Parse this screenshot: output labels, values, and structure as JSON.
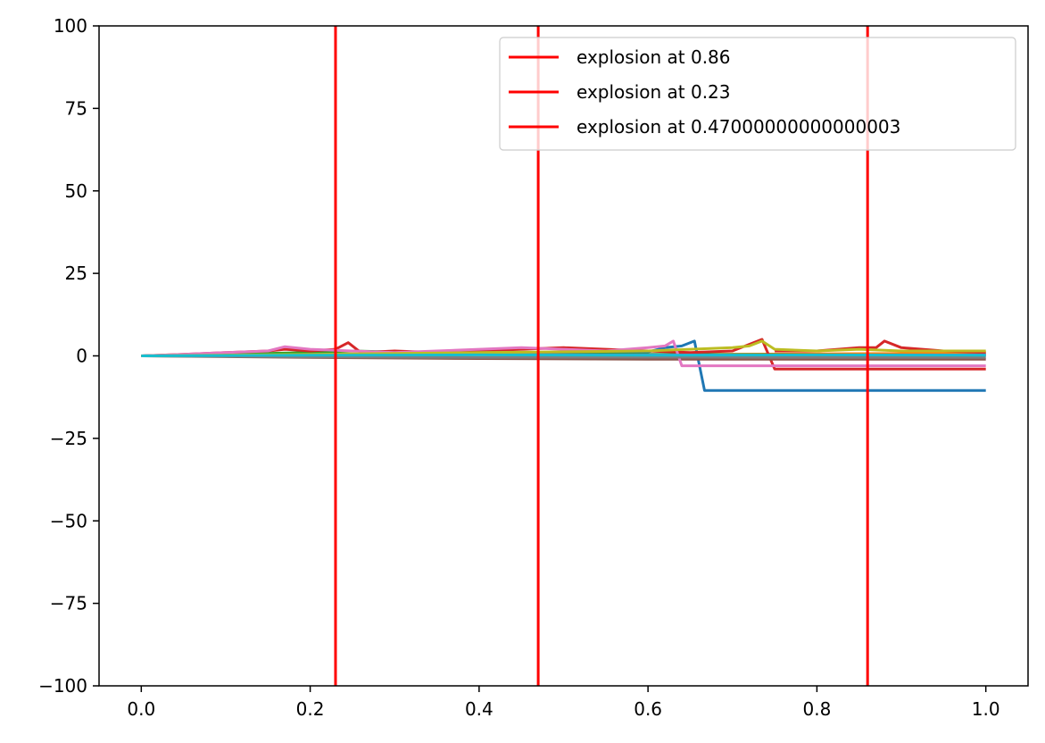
{
  "chart_data": {
    "type": "line",
    "title": "",
    "xlabel": "",
    "ylabel": "",
    "xlim": [
      -0.05,
      1.05
    ],
    "ylim": [
      -100,
      100
    ],
    "xticks": [
      0.0,
      0.2,
      0.4,
      0.6,
      0.8,
      1.0
    ],
    "xtick_labels": [
      "0.0",
      "0.2",
      "0.4",
      "0.6",
      "0.8",
      "1.0"
    ],
    "yticks": [
      -100,
      -75,
      -50,
      -25,
      0,
      25,
      50,
      75,
      100
    ],
    "ytick_labels": [
      "−100",
      "−75",
      "−50",
      "−25",
      "0",
      "25",
      "50",
      "75",
      "100"
    ],
    "grid": false,
    "legend_position": "top-right",
    "vlines": [
      {
        "label": "explosion at 0.86",
        "x": 0.86,
        "color": "#ff0000"
      },
      {
        "label": "explosion at 0.23",
        "x": 0.23,
        "color": "#ff0000"
      },
      {
        "label": "explosion at 0.47000000000000003",
        "x": 0.47000000000000003,
        "color": "#ff0000"
      }
    ],
    "series": [
      {
        "color": "#1f77b4",
        "x": [
          0,
          0.1,
          0.2,
          0.3,
          0.4,
          0.5,
          0.6,
          0.62,
          0.64,
          0.655,
          0.667,
          0.7,
          0.8,
          0.9,
          1.0
        ],
        "y": [
          0,
          0.3,
          0.5,
          0.4,
          0.6,
          0.8,
          1.2,
          2.5,
          3.0,
          4.5,
          -10.5,
          -10.5,
          -10.5,
          -10.5,
          -10.5
        ]
      },
      {
        "color": "#ff7f0e",
        "x": [
          0,
          0.2,
          0.4,
          0.6,
          0.8,
          1.0
        ],
        "y": [
          0,
          0.3,
          0.5,
          0.4,
          0.6,
          0.8
        ]
      },
      {
        "color": "#2ca02c",
        "x": [
          0,
          0.2,
          0.25,
          0.3,
          0.4,
          0.6,
          0.8,
          1.0
        ],
        "y": [
          0,
          1.0,
          1.5,
          1.2,
          0.8,
          0.5,
          0.3,
          0.2
        ]
      },
      {
        "color": "#d62728",
        "x": [
          0,
          0.05,
          0.1,
          0.15,
          0.17,
          0.2,
          0.23,
          0.245,
          0.26,
          0.3,
          0.35,
          0.4,
          0.45,
          0.5,
          0.55,
          0.6,
          0.65,
          0.7,
          0.735,
          0.75,
          0.8,
          0.85,
          0.87,
          0.88,
          0.9,
          0.95,
          1.0
        ],
        "y": [
          0,
          0.5,
          1.0,
          1.5,
          2.0,
          1.5,
          2.0,
          4.0,
          1.0,
          1.5,
          1.0,
          1.5,
          2.0,
          2.5,
          2.0,
          1.5,
          1.0,
          1.5,
          5.0,
          -4.0,
          -4.0,
          -4.0,
          -4.0,
          -4.0,
          -4.0,
          -4.0,
          -4.0
        ]
      },
      {
        "color": "#d62728",
        "x": [
          0.75,
          0.8,
          0.85,
          0.87,
          0.88,
          0.9,
          0.95,
          1.0
        ],
        "y": [
          1.5,
          1.5,
          2.5,
          2.5,
          4.5,
          2.5,
          1.5,
          1.0
        ]
      },
      {
        "color": "#9467bd",
        "x": [
          0,
          0.2,
          0.4,
          0.6,
          0.8,
          1.0
        ],
        "y": [
          0,
          0.2,
          0.4,
          0.3,
          0.2,
          0.3
        ]
      },
      {
        "color": "#8c564b",
        "x": [
          0,
          0.2,
          0.4,
          0.6,
          0.8,
          1.0
        ],
        "y": [
          0,
          -0.5,
          -0.8,
          -1.0,
          -1.0,
          -1.0
        ]
      },
      {
        "color": "#e377c2",
        "x": [
          0,
          0.05,
          0.1,
          0.15,
          0.17,
          0.2,
          0.25,
          0.3,
          0.35,
          0.4,
          0.45,
          0.5,
          0.55,
          0.6,
          0.62,
          0.63,
          0.64,
          0.7,
          0.8,
          0.9,
          1.0
        ],
        "y": [
          0,
          0.5,
          1.0,
          1.5,
          2.8,
          2.0,
          1.5,
          1.0,
          1.5,
          2.0,
          2.5,
          2.0,
          1.5,
          2.5,
          3.0,
          4.5,
          -3.0,
          -3.0,
          -3.0,
          -3.0,
          -3.0
        ]
      },
      {
        "color": "#7f7f7f",
        "x": [
          0,
          0.2,
          0.4,
          0.6,
          0.8,
          1.0
        ],
        "y": [
          0,
          -0.3,
          -0.5,
          -0.4,
          -0.5,
          -0.5
        ]
      },
      {
        "color": "#bcbd22",
        "x": [
          0,
          0.2,
          0.4,
          0.6,
          0.65,
          0.7,
          0.72,
          0.735,
          0.75,
          0.8,
          0.85,
          0.9,
          1.0
        ],
        "y": [
          0,
          0.5,
          1.0,
          1.5,
          2.0,
          2.5,
          3.0,
          4.5,
          2.0,
          1.5,
          2.0,
          1.5,
          1.5
        ]
      },
      {
        "color": "#17becf",
        "x": [
          0,
          0.2,
          0.4,
          0.6,
          0.8,
          1.0
        ],
        "y": [
          0,
          0.2,
          0.3,
          0.2,
          0.3,
          0.2
        ]
      }
    ]
  }
}
